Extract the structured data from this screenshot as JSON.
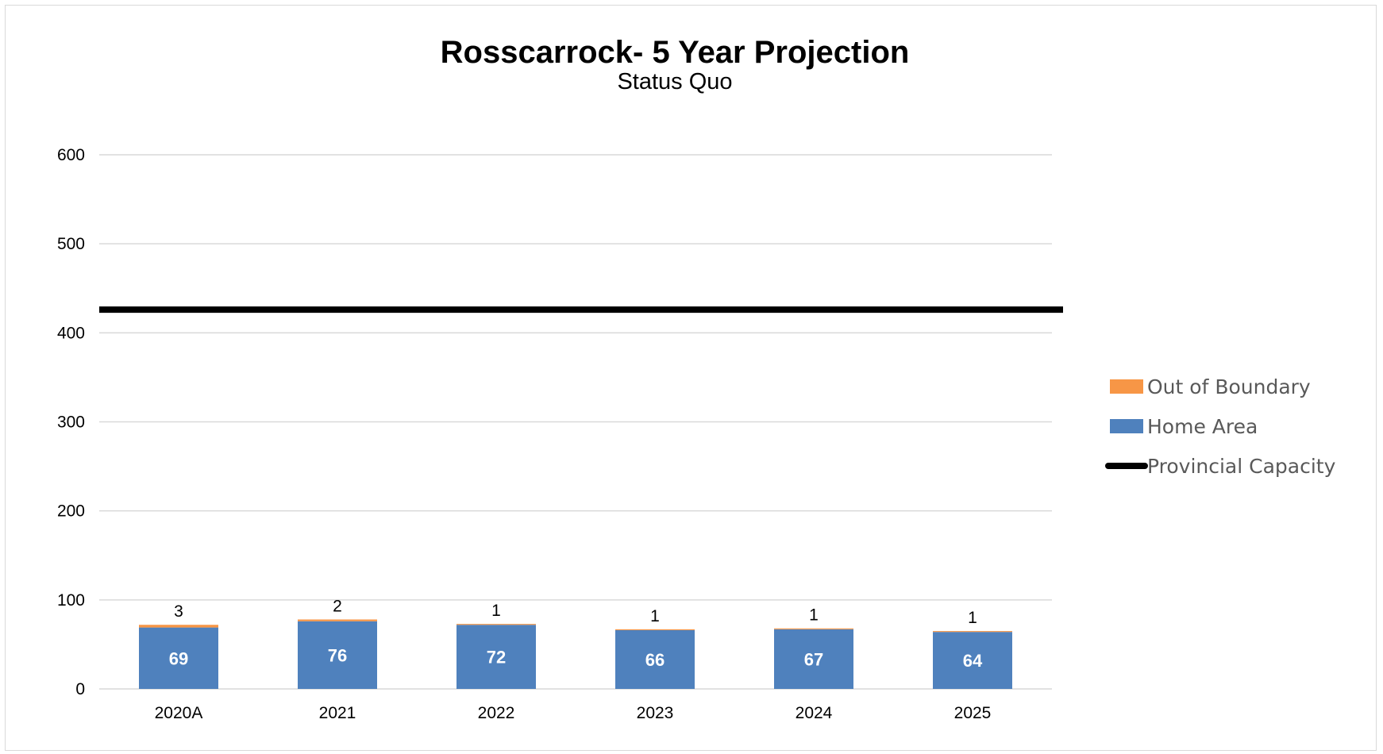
{
  "chart_data": {
    "type": "bar",
    "stacked": true,
    "title": "Rosscarrock- 5 Year Projection",
    "subtitle": "Status Quo",
    "categories": [
      "2020A",
      "2021",
      "2022",
      "2023",
      "2024",
      "2025"
    ],
    "series": [
      {
        "name": "Home Area",
        "color": "#4f81bd",
        "values": [
          69,
          76,
          72,
          66,
          67,
          64
        ]
      },
      {
        "name": "Out of Boundary",
        "color": "#f79646",
        "values": [
          3,
          2,
          1,
          1,
          1,
          1
        ]
      }
    ],
    "reference_line": {
      "name": "Provincial Capacity",
      "value": 426,
      "color": "#000000"
    },
    "yticks": [
      "0",
      "100",
      "200",
      "300",
      "400",
      "500",
      "600"
    ],
    "ylim": [
      0,
      600
    ],
    "grid": true,
    "legend": {
      "placement": "right",
      "entries": [
        "Out of Boundary",
        "Home Area",
        "Provincial Capacity"
      ]
    }
  }
}
